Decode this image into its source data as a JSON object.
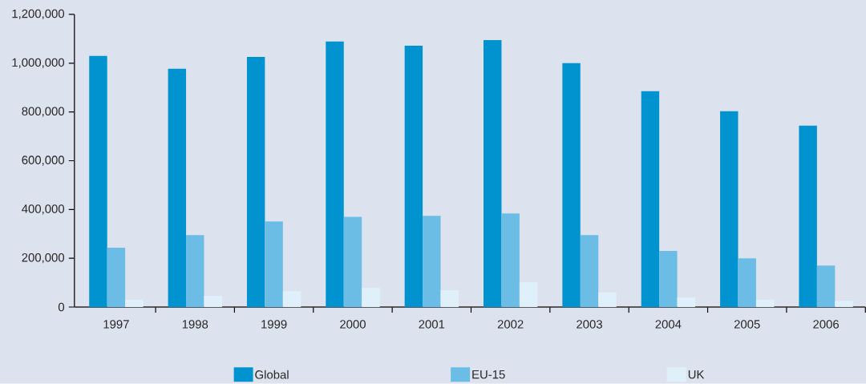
{
  "chart_data": {
    "type": "bar",
    "categories": [
      "1997",
      "1998",
      "1999",
      "2000",
      "2001",
      "2002",
      "2003",
      "2004",
      "2005",
      "2006"
    ],
    "series": [
      {
        "name": "Global",
        "color": "#0093d0",
        "values": [
          1030000,
          977000,
          1026000,
          1089000,
          1072000,
          1095000,
          1000000,
          885000,
          803000,
          744000
        ]
      },
      {
        "name": "EU-15",
        "color": "#6bbde6",
        "values": [
          243000,
          295000,
          351000,
          370000,
          374000,
          384000,
          295000,
          230000,
          200000,
          170000
        ]
      },
      {
        "name": "UK",
        "color": "#dff0fa",
        "values": [
          30000,
          46000,
          66000,
          79000,
          69000,
          102000,
          59000,
          39000,
          30000,
          26000
        ]
      }
    ],
    "ylim": [
      0,
      1200000
    ],
    "yticks": [
      {
        "value": 0,
        "label": "0"
      },
      {
        "value": 200000,
        "label": "200,000"
      },
      {
        "value": 400000,
        "label": "400,000"
      },
      {
        "value": 600000,
        "label": "600,000"
      },
      {
        "value": 800000,
        "label": "800,000"
      },
      {
        "value": 1000000,
        "label": "1,000,000"
      },
      {
        "value": 1200000,
        "label": "1,200,000"
      }
    ],
    "grid": false,
    "legend": "bottom"
  }
}
